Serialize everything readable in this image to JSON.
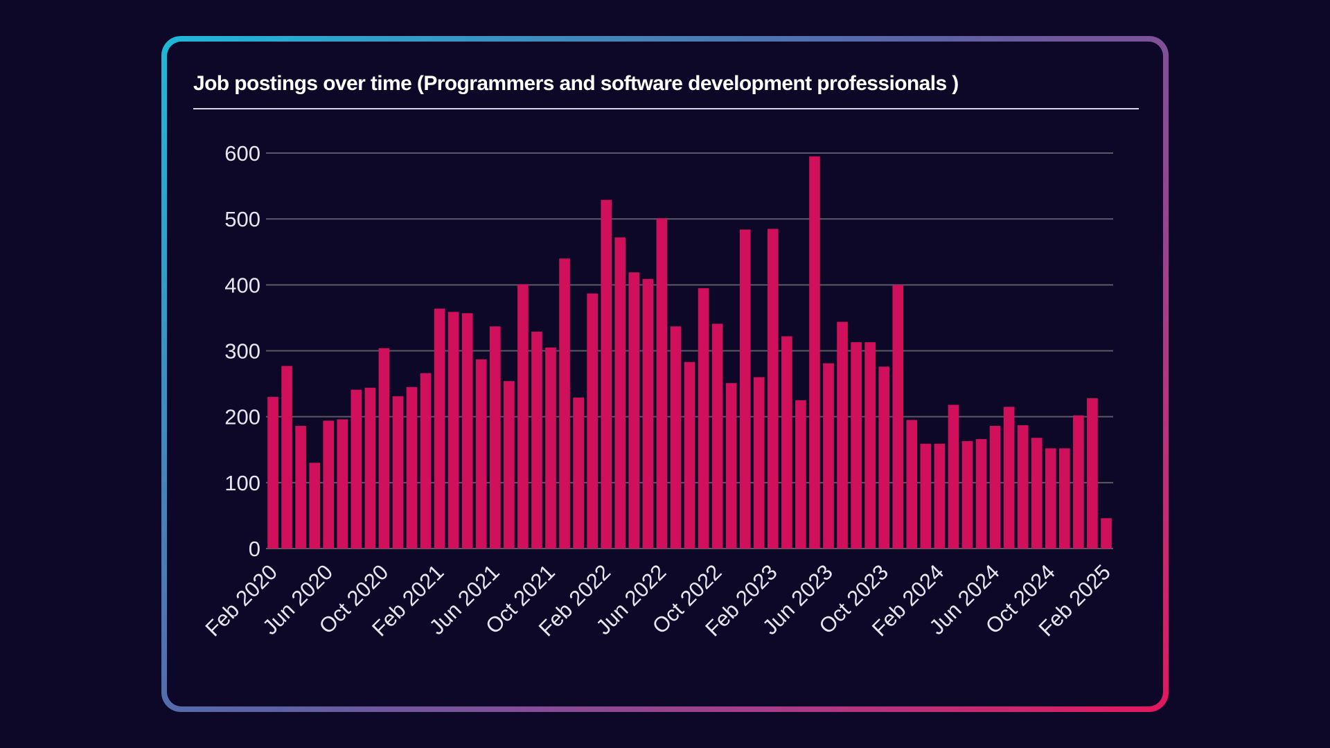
{
  "chart_data": {
    "type": "bar",
    "title": "Job postings over time (Programmers and software development professionals )",
    "xlabel": "",
    "ylabel": "",
    "ylim": [
      0,
      600
    ],
    "yticks": [
      "0",
      "100",
      "200",
      "300",
      "400",
      "500",
      "600"
    ],
    "grid": true,
    "legend": "none",
    "bar_color": "#d0105a",
    "grid_color": "#5a5a66",
    "xtick_labels": [
      "Feb 2020",
      "Jun 2020",
      "Oct 2020",
      "Feb 2021",
      "Jun 2021",
      "Oct 2021",
      "Feb 2022",
      "Jun 2022",
      "Oct 2022",
      "Feb 2023",
      "Jun 2023",
      "Oct 2023",
      "Feb 2024",
      "Jun 2024",
      "Oct 2024",
      "Feb 2025"
    ],
    "xtick_every": 4,
    "categories": [
      "Feb 2020",
      "Mar 2020",
      "Apr 2020",
      "May 2020",
      "Jun 2020",
      "Jul 2020",
      "Aug 2020",
      "Sep 2020",
      "Oct 2020",
      "Nov 2020",
      "Dec 2020",
      "Jan 2021",
      "Feb 2021",
      "Mar 2021",
      "Apr 2021",
      "May 2021",
      "Jun 2021",
      "Jul 2021",
      "Aug 2021",
      "Sep 2021",
      "Oct 2021",
      "Nov 2021",
      "Dec 2021",
      "Jan 2022",
      "Feb 2022",
      "Mar 2022",
      "Apr 2022",
      "May 2022",
      "Jun 2022",
      "Jul 2022",
      "Aug 2022",
      "Sep 2022",
      "Oct 2022",
      "Nov 2022",
      "Dec 2022",
      "Jan 2023",
      "Feb 2023",
      "Mar 2023",
      "Apr 2023",
      "May 2023",
      "Jun 2023",
      "Jul 2023",
      "Aug 2023",
      "Sep 2023",
      "Oct 2023",
      "Nov 2023",
      "Dec 2023",
      "Jan 2024",
      "Feb 2024",
      "Mar 2024",
      "Apr 2024",
      "May 2024",
      "Jun 2024",
      "Jul 2024",
      "Aug 2024",
      "Sep 2024",
      "Oct 2024",
      "Nov 2024",
      "Dec 2024",
      "Jan 2025",
      "Feb 2025"
    ],
    "values": [
      230,
      277,
      186,
      130,
      194,
      196,
      241,
      244,
      304,
      231,
      245,
      266,
      364,
      359,
      357,
      287,
      337,
      254,
      401,
      329,
      305,
      440,
      229,
      387,
      529,
      472,
      419,
      409,
      501,
      337,
      283,
      395,
      341,
      251,
      484,
      260,
      485,
      322,
      225,
      595,
      281,
      344,
      313,
      313,
      276,
      400,
      195,
      159,
      159,
      218,
      163,
      166,
      186,
      215,
      187,
      168,
      152,
      152,
      202,
      228,
      46
    ]
  }
}
